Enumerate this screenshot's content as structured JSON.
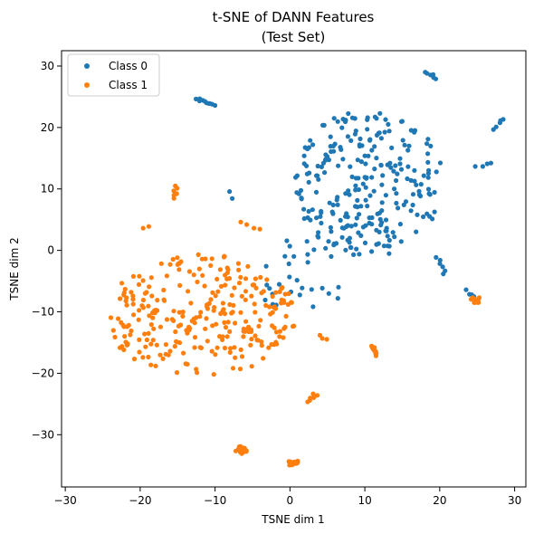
{
  "chart_data": {
    "type": "scatter",
    "title": "t-SNE of DANN Features",
    "subtitle": "(Test Set)",
    "xlabel": "TSNE dim 1",
    "ylabel": "TSNE dim 2",
    "xlim": [
      -30.5,
      31.5
    ],
    "ylim": [
      -38.5,
      32.5
    ],
    "xticks": [
      -30,
      -20,
      -10,
      0,
      10,
      20,
      30
    ],
    "yticks": [
      -30,
      -20,
      -10,
      0,
      10,
      20,
      30
    ],
    "grid": false,
    "legend_position": "top-left",
    "series": [
      {
        "name": "Class 0",
        "color": "#1f77b4",
        "clusters": [
          {
            "kind": "blob",
            "cx": 10.5,
            "cy": 11,
            "rx": 10,
            "ry": 12,
            "n": 260
          },
          {
            "kind": "blob",
            "cx": 1,
            "cy": -4,
            "rx": 7,
            "ry": 6,
            "n": 30
          },
          {
            "kind": "line",
            "from": [
              -12.5,
              24.8
            ],
            "to": [
              -10,
              23.5
            ],
            "n": 10
          },
          {
            "kind": "line",
            "from": [
              28.5,
              21.5
            ],
            "to": [
              27.5,
              19.8
            ],
            "n": 5
          },
          {
            "kind": "line",
            "from": [
              25,
              13.6
            ],
            "to": [
              27,
              14.4
            ],
            "n": 4
          },
          {
            "kind": "line",
            "from": [
              18,
              29
            ],
            "to": [
              19.5,
              28
            ],
            "n": 6
          },
          {
            "kind": "line",
            "from": [
              19.5,
              -1
            ],
            "to": [
              21,
              -4
            ],
            "n": 6
          },
          {
            "kind": "line",
            "from": [
              23.5,
              -6.5
            ],
            "to": [
              24.5,
              -7.5
            ],
            "n": 4
          },
          {
            "kind": "line",
            "from": [
              -8,
              9.5
            ],
            "to": [
              -7.5,
              8.6
            ],
            "n": 2
          }
        ],
        "points": []
      },
      {
        "name": "Class 1",
        "color": "#ff7f0e",
        "clusters": [
          {
            "kind": "blob",
            "cx": -12,
            "cy": -10.5,
            "rx": 13,
            "ry": 10,
            "n": 280
          },
          {
            "kind": "blob",
            "cx": -6.5,
            "cy": -32.5,
            "rx": 0.8,
            "ry": 0.6,
            "n": 18
          },
          {
            "kind": "blob",
            "cx": 0.5,
            "cy": -34.6,
            "rx": 0.8,
            "ry": 0.5,
            "n": 16
          },
          {
            "kind": "blob",
            "cx": 24.8,
            "cy": -8,
            "rx": 0.8,
            "ry": 0.6,
            "n": 16
          },
          {
            "kind": "line",
            "from": [
              11,
              -15.5
            ],
            "to": [
              11.5,
              -17
            ],
            "n": 10
          },
          {
            "kind": "line",
            "from": [
              -15,
              10.5
            ],
            "to": [
              -15.5,
              8.5
            ],
            "n": 6
          },
          {
            "kind": "line",
            "from": [
              2.5,
              -24.5
            ],
            "to": [
              3.5,
              -23.5
            ],
            "n": 7
          },
          {
            "kind": "line",
            "from": [
              4,
              -14
            ],
            "to": [
              5,
              -14.5
            ],
            "n": 3
          },
          {
            "kind": "line",
            "from": [
              -6.5,
              4.5
            ],
            "to": [
              -4,
              3.5
            ],
            "n": 4
          },
          {
            "kind": "line",
            "from": [
              -19.5,
              3.5
            ],
            "to": [
              -19,
              3.7
            ],
            "n": 2
          }
        ],
        "points": []
      }
    ]
  }
}
